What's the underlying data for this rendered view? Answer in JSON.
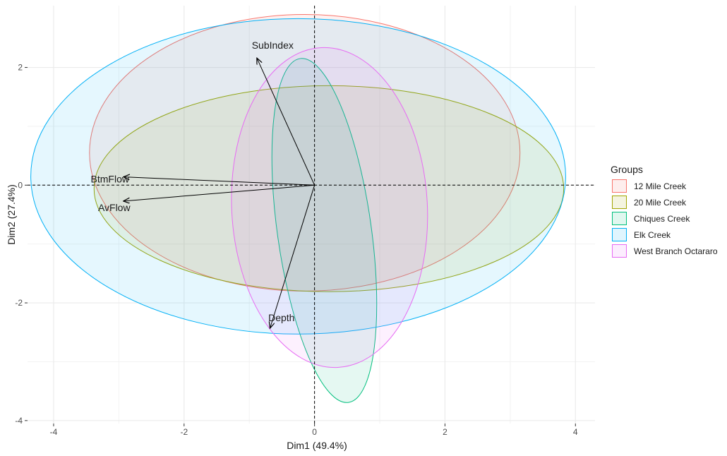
{
  "chart_data": {
    "type": "scatter",
    "xlabel": "Dim1 (49.4%)",
    "ylabel": "Dim2 (27.4%)",
    "xlim": [
      -4.4,
      4.3
    ],
    "ylim": [
      -4.05,
      3.05
    ],
    "x_ticks": [
      -4,
      -2,
      0,
      2,
      4
    ],
    "y_ticks": [
      -4,
      -2,
      0,
      2
    ],
    "x_tick_labels": [
      "-4",
      "-2",
      "0",
      "2",
      "4"
    ],
    "y_tick_labels": [
      "-4",
      "-2",
      "0",
      "2"
    ],
    "grid": true,
    "reference_lines": {
      "x": 0,
      "y": 0,
      "style": "dashed"
    },
    "variables": [
      {
        "name": "SubIndex",
        "x": -0.88,
        "y": 2.15
      },
      {
        "name": "BtmFlow",
        "x": -2.92,
        "y": 0.14
      },
      {
        "name": "AvFlow",
        "x": -2.92,
        "y": -0.27
      },
      {
        "name": "Depth",
        "x": -0.68,
        "y": -2.42
      }
    ],
    "legend": {
      "title": "Groups",
      "position": "right",
      "entries": [
        "12 Mile Creek",
        "20 Mile Creek",
        "Chiques Creek",
        "Elk Creek",
        "West Branch Octararo"
      ]
    },
    "series": [
      {
        "name": "12 Mile Creek",
        "color": "#F8766D",
        "ellipse": {
          "cx": -0.15,
          "cy": 0.55,
          "rx": 3.3,
          "ry": 2.35,
          "angle": 0
        }
      },
      {
        "name": "20 Mile Creek",
        "color": "#A3A500",
        "ellipse": {
          "cx": 0.22,
          "cy": -0.06,
          "rx": 3.6,
          "ry": 1.75,
          "angle": 0
        }
      },
      {
        "name": "Chiques Creek",
        "color": "#00BF7D",
        "ellipse": {
          "cx": 0.15,
          "cy": -0.77,
          "rx": 0.72,
          "ry": 2.95,
          "angle": 8
        }
      },
      {
        "name": "Elk Creek",
        "color": "#00B0F6",
        "ellipse": {
          "cx": -0.25,
          "cy": 0.15,
          "rx": 4.1,
          "ry": 2.68,
          "angle": 0
        }
      },
      {
        "name": "West Branch Octararo",
        "color": "#E76BF3",
        "ellipse": {
          "cx": 0.23,
          "cy": -0.38,
          "rx": 1.5,
          "ry": 2.72,
          "angle": 3
        }
      }
    ]
  }
}
